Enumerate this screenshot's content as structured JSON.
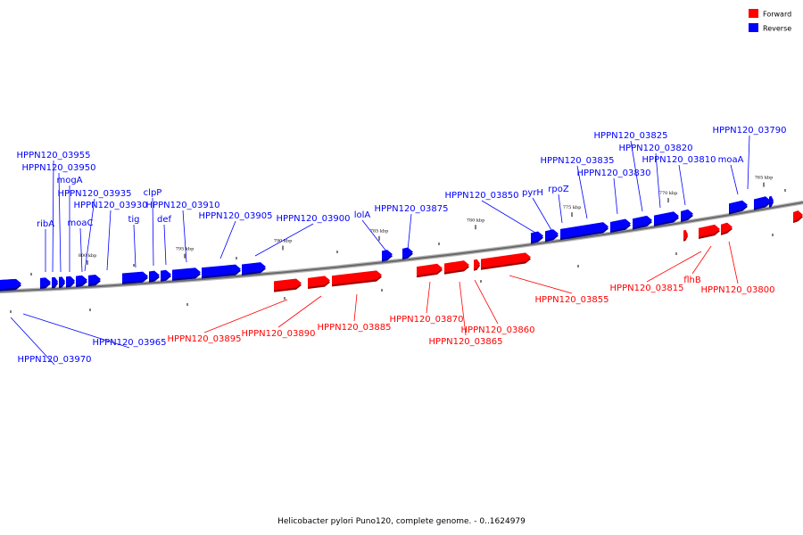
{
  "legend": {
    "forward": {
      "label": "Forward",
      "color": "#ff0000"
    },
    "reverse": {
      "label": "Reverse",
      "color": "#0000ff"
    }
  },
  "caption": "Helicobacter pylori Puno120, complete genome. - 0..1624979",
  "ticks": [
    "800 kbp",
    "795 kbp",
    "790 kbp",
    "785 kbp",
    "780 kbp",
    "775 kbp",
    "770 kbp",
    "765 kbp"
  ],
  "genes": [
    {
      "label": "HPPN120_03955",
      "strand": "reverse"
    },
    {
      "label": "HPPN120_03950",
      "strand": "reverse"
    },
    {
      "label": "mogA",
      "strand": "reverse"
    },
    {
      "label": "ribA",
      "strand": "reverse"
    },
    {
      "label": "HPPN120_03935",
      "strand": "reverse"
    },
    {
      "label": "HPPN120_03930",
      "strand": "reverse"
    },
    {
      "label": "moaC",
      "strand": "reverse"
    },
    {
      "label": "tig",
      "strand": "reverse"
    },
    {
      "label": "clpP",
      "strand": "reverse"
    },
    {
      "label": "def",
      "strand": "reverse"
    },
    {
      "label": "HPPN120_03910",
      "strand": "reverse"
    },
    {
      "label": "HPPN120_03905",
      "strand": "reverse"
    },
    {
      "label": "HPPN120_03900",
      "strand": "reverse"
    },
    {
      "label": "lolA",
      "strand": "reverse"
    },
    {
      "label": "HPPN120_03875",
      "strand": "reverse"
    },
    {
      "label": "HPPN120_03850",
      "strand": "reverse"
    },
    {
      "label": "pyrH",
      "strand": "reverse"
    },
    {
      "label": "rpoZ",
      "strand": "reverse"
    },
    {
      "label": "HPPN120_03835",
      "strand": "reverse"
    },
    {
      "label": "HPPN120_03830",
      "strand": "reverse"
    },
    {
      "label": "HPPN120_03825",
      "strand": "reverse"
    },
    {
      "label": "HPPN120_03820",
      "strand": "reverse"
    },
    {
      "label": "HPPN120_03810",
      "strand": "reverse"
    },
    {
      "label": "moaA",
      "strand": "reverse"
    },
    {
      "label": "HPPN120_03790",
      "strand": "reverse"
    },
    {
      "label": "HPPN120_03965",
      "strand": "reverse"
    },
    {
      "label": "HPPN120_03970",
      "strand": "reverse"
    },
    {
      "label": "HPPN120_03895",
      "strand": "forward"
    },
    {
      "label": "HPPN120_03890",
      "strand": "forward"
    },
    {
      "label": "HPPN120_03885",
      "strand": "forward"
    },
    {
      "label": "HPPN120_03870",
      "strand": "forward"
    },
    {
      "label": "HPPN120_03865",
      "strand": "forward"
    },
    {
      "label": "HPPN120_03860",
      "strand": "forward"
    },
    {
      "label": "HPPN120_03855",
      "strand": "forward"
    },
    {
      "label": "HPPN120_03815",
      "strand": "forward"
    },
    {
      "label": "flhB",
      "strand": "forward"
    },
    {
      "label": "HPPN120_03800",
      "strand": "forward"
    }
  ]
}
